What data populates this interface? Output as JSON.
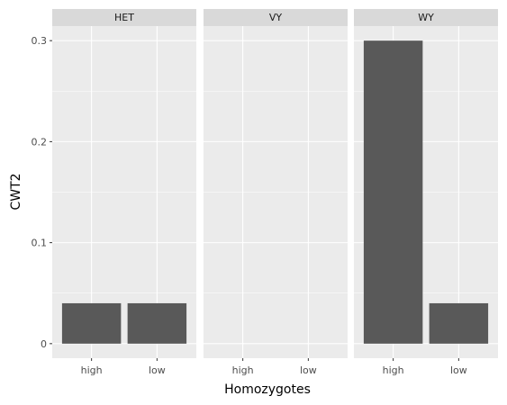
{
  "chart_data": {
    "type": "bar",
    "xlabel": "Homozygotes",
    "ylabel": "CWT2",
    "ylim": [
      -0.0144,
      0.3144
    ],
    "yticks": [
      0,
      0.1,
      0.2,
      0.3
    ],
    "ytick_labels": [
      "0",
      "0.1",
      "0.2",
      "0.3"
    ],
    "categories": [
      "high",
      "low"
    ],
    "facets": [
      {
        "label": "HET",
        "values": [
          0.04,
          0.04
        ]
      },
      {
        "label": "VY",
        "values": [
          0,
          0
        ]
      },
      {
        "label": "WY",
        "values": [
          0.3,
          0.04
        ]
      }
    ],
    "grid": true,
    "legend": "none",
    "colors": {
      "panel_bg": "#EBEBEB",
      "strip_bg": "#D9D9D9",
      "grid_major": "#FFFFFF",
      "bar_fill": "#595959",
      "tick": "#333333"
    }
  }
}
